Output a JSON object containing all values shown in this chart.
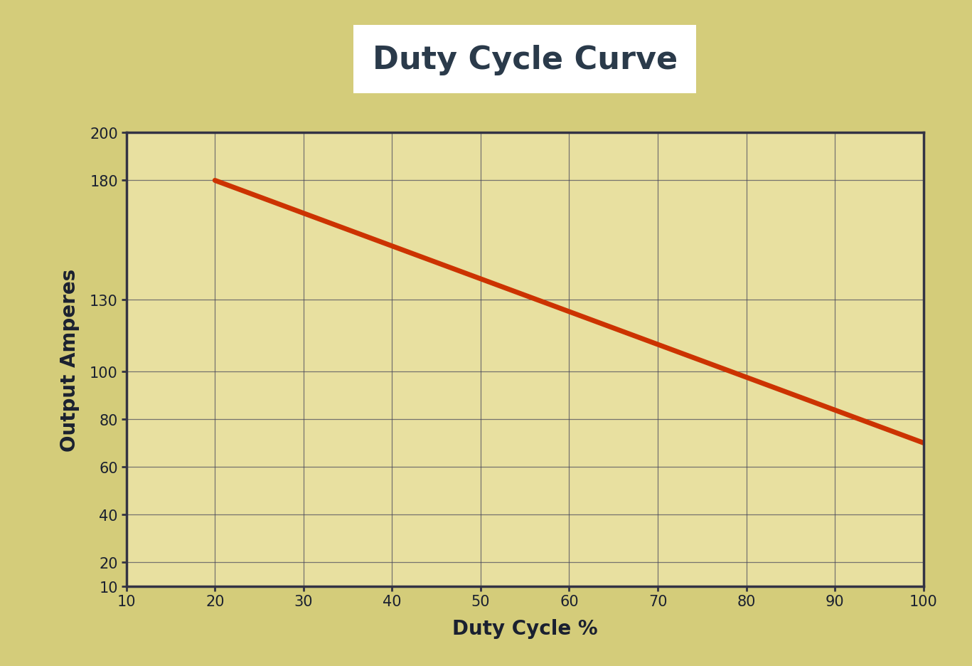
{
  "title": "Duty Cycle Curve",
  "xlabel": "Duty Cycle %",
  "ylabel": "Output Amperes",
  "plot_bg_color": "#e8e0a0",
  "outer_bg_color": "#d4cc7a",
  "line_color": "#cc3300",
  "line_width": 5,
  "x_data": [
    20,
    100
  ],
  "y_data": [
    180,
    70
  ],
  "x_ticks": [
    10,
    20,
    30,
    40,
    50,
    60,
    70,
    80,
    90,
    100
  ],
  "y_ticks": [
    10,
    20,
    40,
    60,
    80,
    100,
    130,
    180,
    200
  ],
  "xlim": [
    10,
    100
  ],
  "ylim": [
    10,
    200
  ],
  "title_fontsize": 32,
  "axis_label_fontsize": 20,
  "tick_fontsize": 15,
  "grid_color": "#44445a",
  "axis_color": "#333344",
  "title_color": "#2a3a4a",
  "label_color": "#1a2030",
  "tick_label_color": "#1a2030"
}
